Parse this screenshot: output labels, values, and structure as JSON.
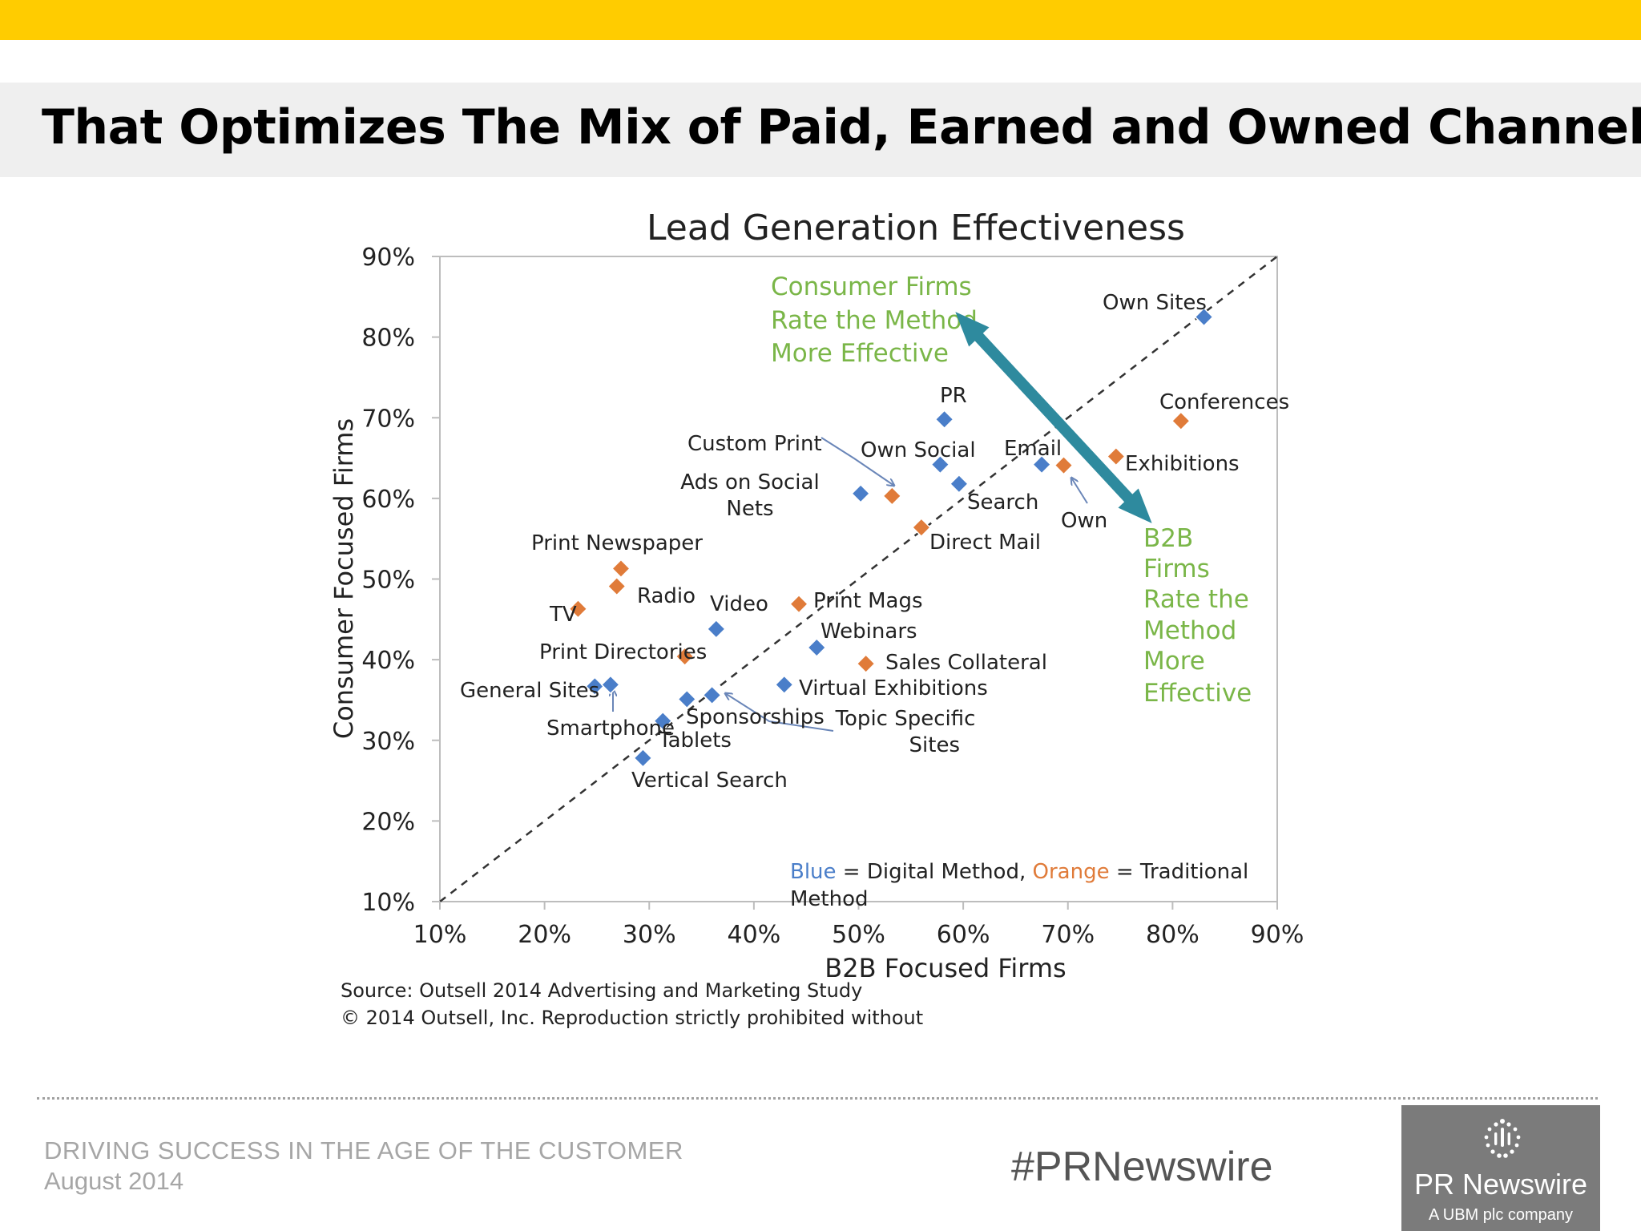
{
  "slide": {
    "title": "That Optimizes The Mix of Paid, Earned and Owned Channels",
    "footer_line1": "DRIVING SUCCESS IN THE AGE OF THE CUSTOMER",
    "footer_line2": "August 2014",
    "hashtag": "#PRNewswire",
    "logo_name": "PR Newswire",
    "logo_tagline": "A UBM plc company"
  },
  "colors": {
    "top_bar": "#ffcc00",
    "digital": "#4a7ec9",
    "traditional": "#e07b39",
    "green": "#7ab648",
    "arrow": "#2e8a9e"
  },
  "chart_data": {
    "type": "scatter",
    "title": "Lead Generation Effectiveness",
    "xlabel": "B2B Focused Firms",
    "ylabel": "Consumer Focused Firms",
    "xlim": [
      10,
      90
    ],
    "ylim": [
      10,
      90
    ],
    "x_ticks": [
      "10%",
      "20%",
      "30%",
      "40%",
      "50%",
      "60%",
      "70%",
      "80%",
      "90%"
    ],
    "y_ticks": [
      "10%",
      "20%",
      "30%",
      "40%",
      "50%",
      "60%",
      "70%",
      "80%",
      "90%"
    ],
    "diagonal": true,
    "grid": false,
    "series": [
      {
        "type": "digital",
        "points": [
          {
            "name": "Own Sites",
            "x": 83,
            "y": 82.5
          },
          {
            "name": "PR",
            "x": 58.2,
            "y": 69.8
          },
          {
            "name": "Own Social",
            "x": 57.8,
            "y": 64.2
          },
          {
            "name": "Email",
            "x": 67.5,
            "y": 64.2
          },
          {
            "name": "Search",
            "x": 59.6,
            "y": 61.8
          },
          {
            "name": "Ads on Social Nets",
            "x": 50.2,
            "y": 60.6
          },
          {
            "name": "Video",
            "x": 36.4,
            "y": 43.8
          },
          {
            "name": "Webinars",
            "x": 46,
            "y": 41.5
          },
          {
            "name": "Virtual Exhibitions",
            "x": 42.9,
            "y": 36.9
          },
          {
            "name": "General Sites",
            "x": 24.8,
            "y": 36.7
          },
          {
            "name": "Smartphone",
            "x": 26.3,
            "y": 36.9
          },
          {
            "name": "Tablets",
            "x": 31.3,
            "y": 32.4
          },
          {
            "name": "Sponsorships",
            "x": 33.6,
            "y": 35.1
          },
          {
            "name": "Topic Specific Sites",
            "x": 36,
            "y": 35.6
          },
          {
            "name": "Vertical Search",
            "x": 29.4,
            "y": 27.8
          }
        ]
      },
      {
        "type": "traditional",
        "points": [
          {
            "name": "Conferences",
            "x": 80.8,
            "y": 69.6
          },
          {
            "name": "Exhibitions",
            "x": 74.6,
            "y": 65.2
          },
          {
            "name": "Own",
            "x": 69.6,
            "y": 64.1
          },
          {
            "name": "Custom Print",
            "x": 53.2,
            "y": 60.3
          },
          {
            "name": "Direct Mail",
            "x": 56,
            "y": 56.4
          },
          {
            "name": "Print Newspaper",
            "x": 27.3,
            "y": 51.3
          },
          {
            "name": "Radio",
            "x": 26.9,
            "y": 49.1
          },
          {
            "name": "TV",
            "x": 23.2,
            "y": 46.3
          },
          {
            "name": "Print Mags",
            "x": 44.3,
            "y": 46.9
          },
          {
            "name": "Print Directories",
            "x": 33.4,
            "y": 40.4
          },
          {
            "name": "Sales Collateral",
            "x": 50.7,
            "y": 39.5
          }
        ]
      }
    ],
    "annotations": {
      "consumer_lines": [
        "Consumer Firms",
        "Rate the Method",
        "More Effective"
      ],
      "b2b_lines": [
        "B2B",
        "Firms",
        "Rate the",
        "Method",
        "More",
        "Effective"
      ],
      "legend_blue": "Blue",
      "legend_mid": " = Digital Method, ",
      "legend_orange": "Orange",
      "legend_end": " = Traditional",
      "legend_line2": "Method"
    },
    "source_lines": [
      "Source: Outsell 2014 Advertising and Marketing Study",
      "© 2014 Outsell, Inc. Reproduction strictly prohibited without"
    ]
  }
}
